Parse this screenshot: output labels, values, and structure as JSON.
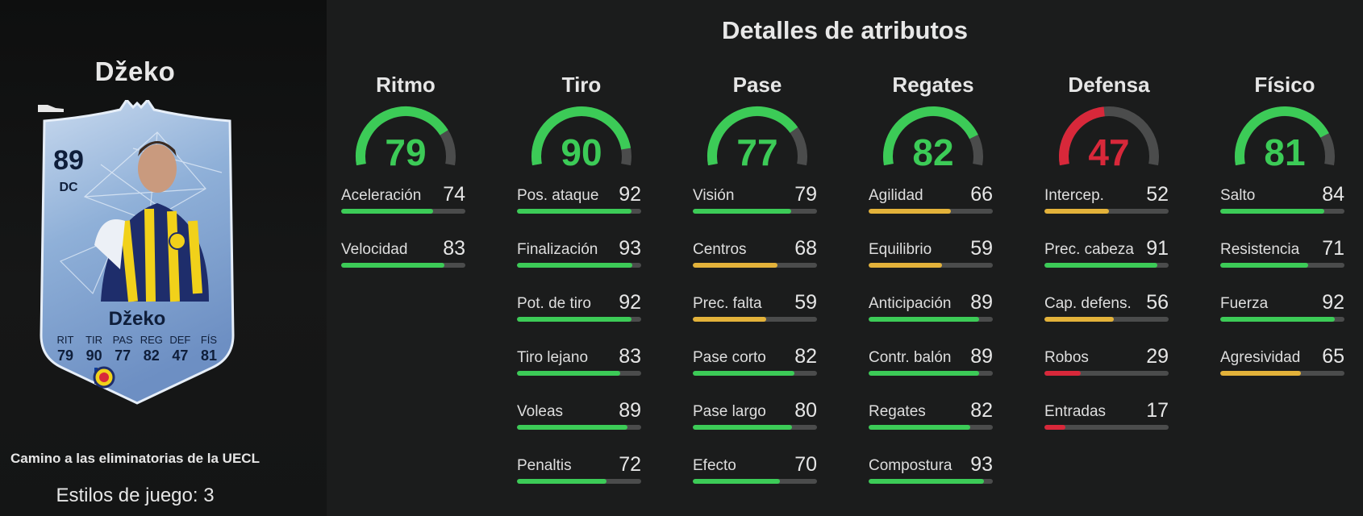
{
  "player": {
    "name": "Džeko",
    "rating": "89",
    "position": "DC",
    "card_name": "Džeko",
    "card_stats": [
      {
        "label": "RIT",
        "value": "79"
      },
      {
        "label": "TIR",
        "value": "90"
      },
      {
        "label": "PAS",
        "value": "77"
      },
      {
        "label": "REG",
        "value": "82"
      },
      {
        "label": "DEF",
        "value": "47"
      },
      {
        "label": "FÍS",
        "value": "81"
      }
    ],
    "campaign": "Camino a las eliminatorias de la UECL",
    "playstyles": "Estilos de juego: 3"
  },
  "colors": {
    "high": "#3ccb57",
    "mid": "#e3b23a",
    "low": "#d8283a",
    "track": "#4b4c4c"
  },
  "heading": "Detalles de atributos",
  "categories": [
    {
      "name": "Ritmo",
      "value": 79,
      "stats": [
        {
          "label": "Aceleración",
          "value": 74
        },
        {
          "label": "Velocidad",
          "value": 83
        }
      ]
    },
    {
      "name": "Tiro",
      "value": 90,
      "stats": [
        {
          "label": "Pos. ataque",
          "value": 92
        },
        {
          "label": "Finalización",
          "value": 93
        },
        {
          "label": "Pot. de tiro",
          "value": 92
        },
        {
          "label": "Tiro lejano",
          "value": 83
        },
        {
          "label": "Voleas",
          "value": 89
        },
        {
          "label": "Penaltis",
          "value": 72
        }
      ]
    },
    {
      "name": "Pase",
      "value": 77,
      "stats": [
        {
          "label": "Visión",
          "value": 79
        },
        {
          "label": "Centros",
          "value": 68
        },
        {
          "label": "Prec. falta",
          "value": 59
        },
        {
          "label": "Pase corto",
          "value": 82
        },
        {
          "label": "Pase largo",
          "value": 80
        },
        {
          "label": "Efecto",
          "value": 70
        }
      ]
    },
    {
      "name": "Regates",
      "value": 82,
      "stats": [
        {
          "label": "Agilidad",
          "value": 66
        },
        {
          "label": "Equilibrio",
          "value": 59
        },
        {
          "label": "Anticipación",
          "value": 89
        },
        {
          "label": "Contr. balón",
          "value": 89
        },
        {
          "label": "Regates",
          "value": 82
        },
        {
          "label": "Compostura",
          "value": 93
        }
      ]
    },
    {
      "name": "Defensa",
      "value": 47,
      "stats": [
        {
          "label": "Intercep.",
          "value": 52
        },
        {
          "label": "Prec. cabeza",
          "value": 91
        },
        {
          "label": "Cap. defens.",
          "value": 56
        },
        {
          "label": "Robos",
          "value": 29
        },
        {
          "label": "Entradas",
          "value": 17
        }
      ]
    },
    {
      "name": "Físico",
      "value": 81,
      "stats": [
        {
          "label": "Salto",
          "value": 84
        },
        {
          "label": "Resistencia",
          "value": 71
        },
        {
          "label": "Fuerza",
          "value": 92
        },
        {
          "label": "Agresividad",
          "value": 65
        }
      ]
    }
  ]
}
